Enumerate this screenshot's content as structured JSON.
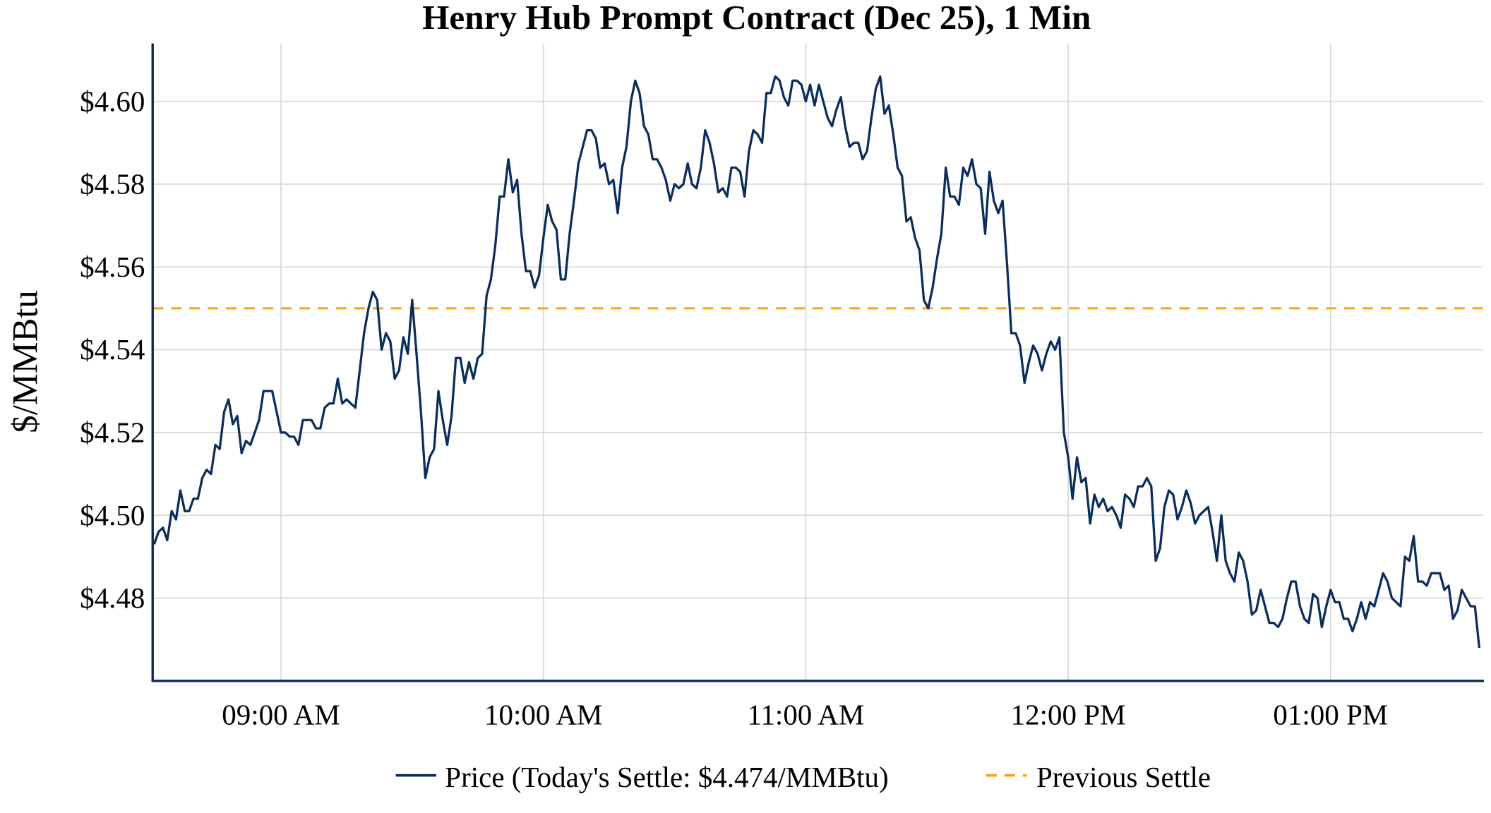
{
  "chart_data": {
    "type": "line",
    "title": "Henry Hub Prompt Contract (Dec 25), 1 Min",
    "xlabel": "",
    "ylabel": "$/MMBtu",
    "ylim": [
      4.46,
      4.614
    ],
    "grid": true,
    "legend_placement": "bottom",
    "x_ticks": [
      {
        "time": "09:00",
        "label": "09:00 AM"
      },
      {
        "time": "10:00",
        "label": "10:00 AM"
      },
      {
        "time": "11:00",
        "label": "11:00 AM"
      },
      {
        "time": "12:00",
        "label": "12:00 PM"
      },
      {
        "time": "13:00",
        "label": "01:00 PM"
      }
    ],
    "y_ticks": [
      {
        "value": 4.48,
        "label": "$4.48"
      },
      {
        "value": 4.5,
        "label": "$4.50"
      },
      {
        "value": 4.52,
        "label": "$4.52"
      },
      {
        "value": 4.54,
        "label": "$4.54"
      },
      {
        "value": 4.56,
        "label": "$4.56"
      },
      {
        "value": 4.58,
        "label": "$4.58"
      },
      {
        "value": 4.6,
        "label": "$4.60"
      }
    ],
    "series": [
      {
        "name": "Price (Today's Settle: $4.474/MMBtu)",
        "color": "#0b2d5b",
        "style": "solid",
        "start_time": "08:31",
        "interval_minutes": 1,
        "values": [
          4.493,
          4.496,
          4.497,
          4.494,
          4.501,
          4.499,
          4.506,
          4.501,
          4.501,
          4.504,
          4.504,
          4.509,
          4.511,
          4.51,
          4.517,
          4.516,
          4.525,
          4.528,
          4.522,
          4.524,
          4.515,
          4.518,
          4.517,
          4.52,
          4.523,
          4.53,
          4.53,
          4.53,
          4.525,
          4.52,
          4.52,
          4.519,
          4.519,
          4.517,
          4.523,
          4.523,
          4.523,
          4.521,
          4.521,
          4.526,
          4.527,
          4.527,
          4.533,
          4.527,
          4.528,
          4.527,
          4.526,
          4.535,
          4.544,
          4.55,
          4.554,
          4.552,
          4.54,
          4.544,
          4.542,
          4.533,
          4.535,
          4.543,
          4.539,
          4.552,
          4.539,
          4.525,
          4.509,
          4.514,
          4.516,
          4.53,
          4.523,
          4.517,
          4.524,
          4.538,
          4.538,
          4.532,
          4.537,
          4.533,
          4.538,
          4.539,
          4.553,
          4.557,
          4.565,
          4.577,
          4.577,
          4.586,
          4.578,
          4.581,
          4.568,
          4.559,
          4.559,
          4.555,
          4.558,
          4.567,
          4.575,
          4.571,
          4.569,
          4.557,
          4.557,
          4.568,
          4.576,
          4.585,
          4.589,
          4.593,
          4.593,
          4.591,
          4.584,
          4.585,
          4.58,
          4.581,
          4.573,
          4.584,
          4.589,
          4.6,
          4.605,
          4.602,
          4.594,
          4.592,
          4.586,
          4.586,
          4.584,
          4.581,
          4.576,
          4.58,
          4.579,
          4.58,
          4.585,
          4.58,
          4.579,
          4.584,
          4.593,
          4.59,
          4.585,
          4.578,
          4.579,
          4.577,
          4.584,
          4.584,
          4.583,
          4.577,
          4.588,
          4.593,
          4.592,
          4.59,
          4.602,
          4.602,
          4.606,
          4.605,
          4.601,
          4.599,
          4.605,
          4.605,
          4.604,
          4.6,
          4.604,
          4.599,
          4.604,
          4.6,
          4.596,
          4.594,
          4.598,
          4.601,
          4.594,
          4.589,
          4.59,
          4.59,
          4.586,
          4.588,
          4.596,
          4.603,
          4.606,
          4.597,
          4.599,
          4.592,
          4.584,
          4.582,
          4.571,
          4.572,
          4.567,
          4.564,
          4.552,
          4.55,
          4.555,
          4.562,
          4.568,
          4.584,
          4.577,
          4.577,
          4.575,
          4.584,
          4.582,
          4.586,
          4.58,
          4.579,
          4.568,
          4.583,
          4.576,
          4.573,
          4.576,
          4.561,
          4.544,
          4.544,
          4.541,
          4.532,
          4.537,
          4.541,
          4.539,
          4.535,
          4.539,
          4.542,
          4.54,
          4.543,
          4.52,
          4.514,
          4.504,
          4.514,
          4.508,
          4.509,
          4.498,
          4.505,
          4.502,
          4.504,
          4.501,
          4.502,
          4.5,
          4.497,
          4.505,
          4.504,
          4.502,
          4.507,
          4.507,
          4.509,
          4.507,
          4.489,
          4.492,
          4.502,
          4.506,
          4.505,
          4.499,
          4.502,
          4.506,
          4.503,
          4.498,
          4.5,
          4.501,
          4.502,
          4.496,
          4.489,
          4.5,
          4.489,
          4.486,
          4.484,
          4.491,
          4.489,
          4.484,
          4.476,
          4.477,
          4.482,
          4.478,
          4.474,
          4.474,
          4.473,
          4.475,
          4.48,
          4.484,
          4.484,
          4.478,
          4.475,
          4.474,
          4.481,
          4.48,
          4.473,
          4.478,
          4.482,
          4.479,
          4.479,
          4.475,
          4.475,
          4.472,
          4.475,
          4.479,
          4.475,
          4.479,
          4.478,
          4.482,
          4.486,
          4.484,
          4.48,
          4.479,
          4.478,
          4.49,
          4.489,
          4.495,
          4.484,
          4.484,
          4.483,
          4.486,
          4.486,
          4.486,
          4.482,
          4.483,
          4.475,
          4.477,
          4.482,
          4.48,
          4.478,
          4.478,
          4.468
        ]
      },
      {
        "name": "Previous Settle",
        "color": "#f7a21b",
        "style": "dashed",
        "value": 4.55
      }
    ]
  }
}
